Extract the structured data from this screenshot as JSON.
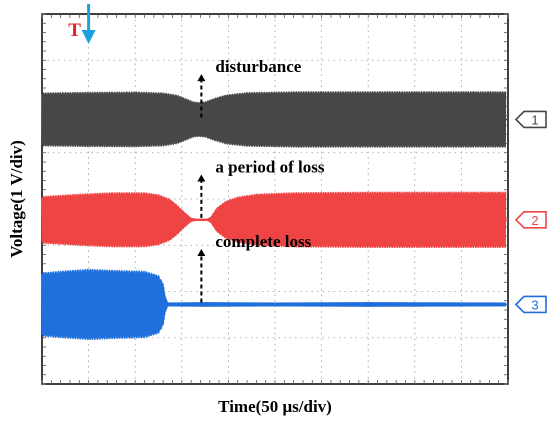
{
  "chart_data": {
    "type": "line",
    "xlabel": "Time(50 μs/div)",
    "ylabel": "Voltage(1 V/div)",
    "grid": true,
    "x_divisions": 10,
    "y_divisions": 8,
    "trigger": {
      "label": "T",
      "time_div": 1.0,
      "label_color": "#e8202a",
      "arrow_color": "#1ba1e2"
    },
    "series": [
      {
        "channel": "1",
        "color": "#474747",
        "baseline_div": 5.72,
        "half_amplitude_div": 0.63,
        "annotation": "disturbance",
        "annotation_time_div": 3.42,
        "envelope": [
          [
            0.0,
            0.93
          ],
          [
            1.0,
            0.95
          ],
          [
            2.0,
            0.96
          ],
          [
            2.6,
            0.93
          ],
          [
            2.9,
            0.85
          ],
          [
            3.1,
            0.72
          ],
          [
            3.25,
            0.62
          ],
          [
            3.35,
            0.6
          ],
          [
            3.5,
            0.62
          ],
          [
            3.7,
            0.74
          ],
          [
            3.95,
            0.86
          ],
          [
            4.4,
            0.94
          ],
          [
            5.5,
            0.97
          ],
          [
            7.0,
            0.97
          ],
          [
            9.95,
            0.97
          ]
        ]
      },
      {
        "channel": "2",
        "color": "#ef4444",
        "baseline_div": 3.55,
        "half_amplitude_div": 0.63,
        "annotation": "a period of loss",
        "annotation_time_div": 3.42,
        "envelope": [
          [
            0.0,
            0.82
          ],
          [
            0.8,
            0.9
          ],
          [
            1.5,
            0.95
          ],
          [
            2.2,
            0.95
          ],
          [
            2.5,
            0.88
          ],
          [
            2.75,
            0.72
          ],
          [
            2.9,
            0.52
          ],
          [
            3.05,
            0.28
          ],
          [
            3.2,
            0.07
          ],
          [
            3.3,
            0.04
          ],
          [
            3.55,
            0.04
          ],
          [
            3.62,
            0.1
          ],
          [
            3.75,
            0.42
          ],
          [
            3.95,
            0.66
          ],
          [
            4.2,
            0.8
          ],
          [
            4.6,
            0.9
          ],
          [
            5.4,
            0.95
          ],
          [
            7.0,
            0.97
          ],
          [
            9.95,
            0.97
          ]
        ]
      },
      {
        "channel": "3",
        "color": "#1f6fdc",
        "baseline_div": 1.72,
        "half_amplitude_div": 0.85,
        "annotation": "complete loss",
        "annotation_time_div": 3.42,
        "envelope": [
          [
            0.0,
            0.82
          ],
          [
            0.4,
            0.86
          ],
          [
            1.0,
            0.91
          ],
          [
            1.6,
            0.88
          ],
          [
            2.2,
            0.86
          ],
          [
            2.5,
            0.75
          ],
          [
            2.6,
            0.55
          ],
          [
            2.65,
            0.2
          ],
          [
            2.7,
            0.05
          ],
          [
            3.5,
            0.06
          ],
          [
            5.0,
            0.05
          ],
          [
            7.0,
            0.06
          ],
          [
            9.95,
            0.05
          ]
        ]
      }
    ]
  }
}
